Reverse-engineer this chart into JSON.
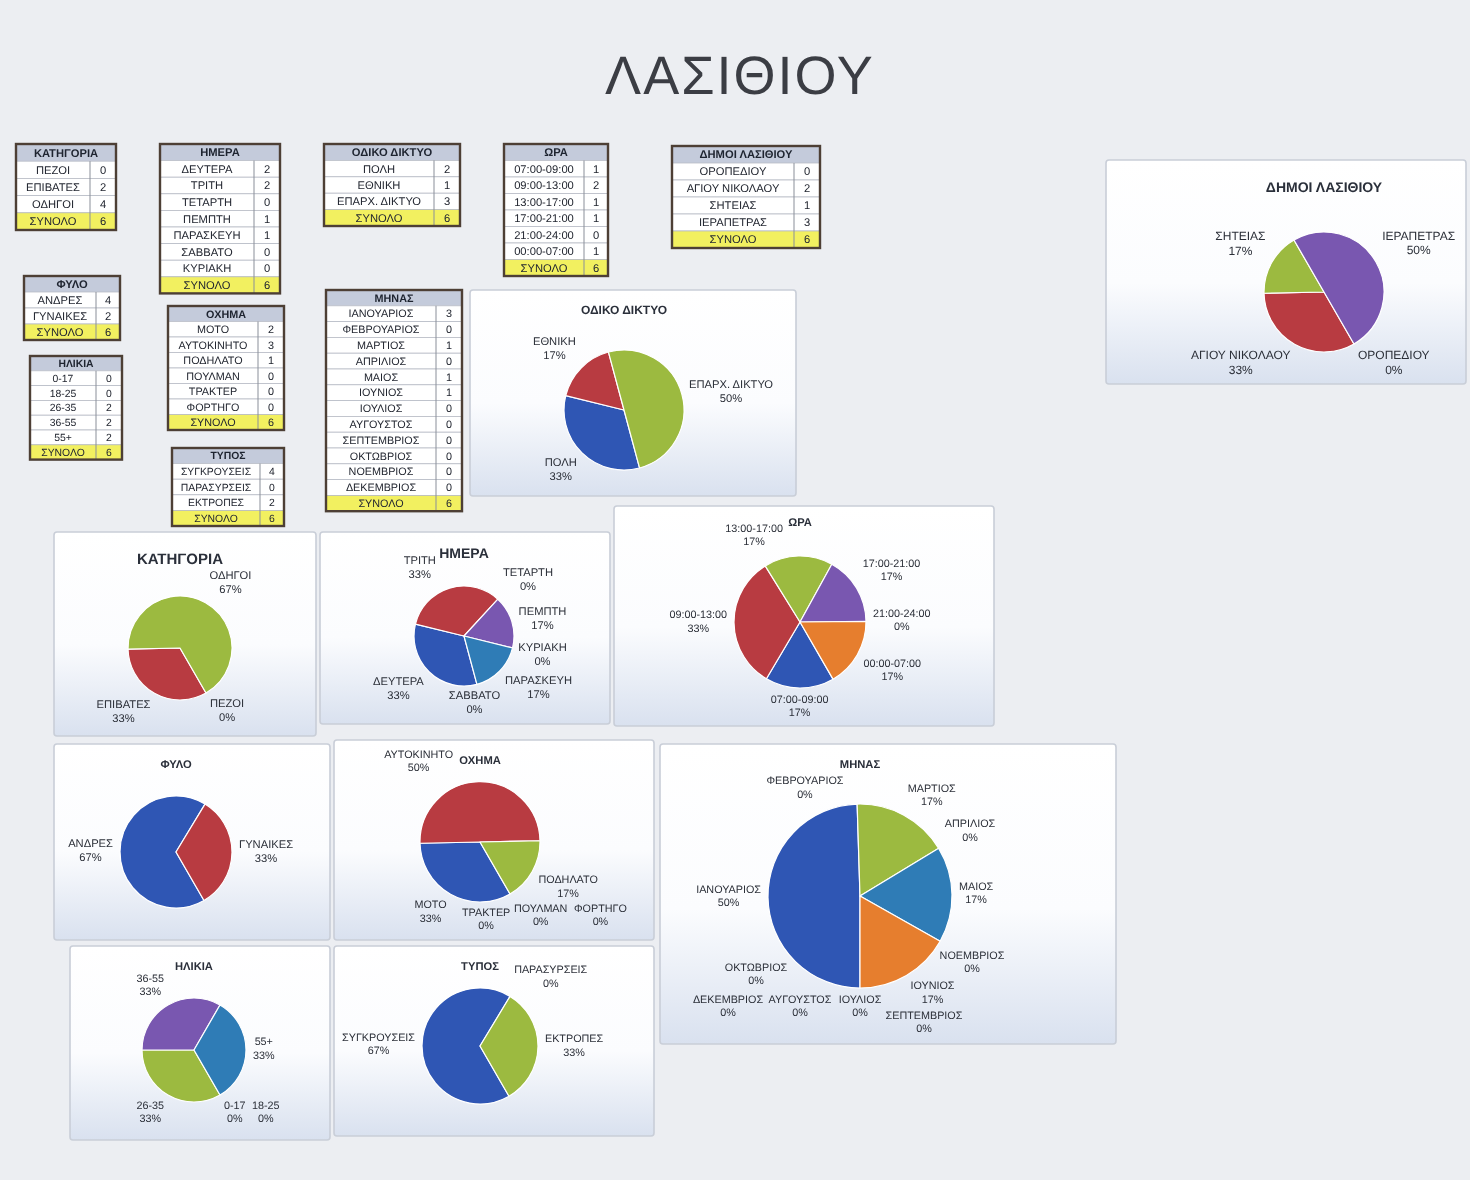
{
  "chart_data": [
    {
      "type": "other",
      "title": "ΛΑΣΙΘΙΟΥ"
    },
    {
      "type": "other",
      "title": "ΚΑΤΗΓΟΡΙΑ",
      "categories": [
        "ΠΕΖΟΙ",
        "ΕΠΙΒΑΤΕΣ",
        "ΟΔΗΓΟΙ",
        "ΣΥΝΟΛΟ"
      ],
      "values": [
        0,
        2,
        4,
        6
      ],
      "data_labels": true,
      "colors": [
        "#ffffff",
        "#ffffff",
        "#ffffff",
        "#f2f060"
      ]
    },
    {
      "type": "other",
      "title": "ΗΜΕΡΑ",
      "categories": [
        "ΔΕΥΤΕΡΑ",
        "ΤΡΙΤΗ",
        "ΤΕΤΑΡΤΗ",
        "ΠΕΜΠΤΗ",
        "ΠΑΡΑΣΚΕΥΗ",
        "ΣΑΒΒΑΤΟ",
        "ΚΥΡΙΑΚΗ",
        "ΣΥΝΟΛΟ"
      ],
      "values": [
        2,
        2,
        0,
        1,
        1,
        0,
        0,
        6
      ],
      "data_labels": true,
      "colors": [
        "#ffffff",
        "#ffffff",
        "#ffffff",
        "#ffffff",
        "#ffffff",
        "#ffffff",
        "#ffffff",
        "#f2f060"
      ]
    },
    {
      "type": "other",
      "title": "ΟΔΙΚΟ ΔΙΚΤΥΟ",
      "categories": [
        "ΠΟΛΗ",
        "ΕΘΝΙΚΗ",
        "ΕΠΑΡΧ. ΔΙΚΤΥΟ",
        "ΣΥΝΟΛΟ"
      ],
      "values": [
        2,
        1,
        3,
        6
      ],
      "data_labels": true,
      "colors": [
        "#ffffff",
        "#ffffff",
        "#ffffff",
        "#f2f060"
      ]
    },
    {
      "type": "other",
      "title": "ΩΡΑ",
      "categories": [
        "07:00-09:00",
        "09:00-13:00",
        "13:00-17:00",
        "17:00-21:00",
        "21:00-24:00",
        "00:00-07:00",
        "ΣΥΝΟΛΟ"
      ],
      "values": [
        1,
        2,
        1,
        1,
        0,
        1,
        6
      ],
      "data_labels": true,
      "colors": [
        "#ffffff",
        "#ffffff",
        "#ffffff",
        "#ffffff",
        "#ffffff",
        "#ffffff",
        "#f2f060"
      ]
    },
    {
      "type": "other",
      "title": "ΔΗΜΟΙ ΛΑΣΙΘΙΟΥ",
      "categories": [
        "ΟΡΟΠΕΔΙΟΥ",
        "ΑΓΙΟΥ ΝΙΚΟΛΑΟΥ",
        "ΣΗΤΕΙΑΣ",
        "ΙΕΡΑΠΕΤΡΑΣ",
        "ΣΥΝΟΛΟ"
      ],
      "values": [
        0,
        2,
        1,
        3,
        6
      ],
      "data_labels": true,
      "colors": [
        "#ffffff",
        "#ffffff",
        "#ffffff",
        "#ffffff",
        "#f2f060"
      ]
    },
    {
      "type": "pie",
      "title": "ΔΗΜΟΙ ΛΑΣΙΘΙΟΥ",
      "categories": [
        "ΟΡΟΠΕΔΙΟΥ",
        "ΑΓΙΟΥ ΝΙΚΟΛΑΟΥ",
        "ΣΗΤΕΙΑΣ",
        "ΙΕΡΑΠΕΤΡΑΣ"
      ],
      "values": [
        0,
        33,
        17,
        50
      ],
      "colors": [
        null,
        "#b83b41",
        "#9cba40",
        "#7957b0"
      ],
      "value_labels": [
        "0%",
        "33%",
        "17%",
        "50%"
      ]
    },
    {
      "type": "other",
      "title": "ΦΥΛΟ",
      "categories": [
        "ΑΝΔΡΕΣ",
        "ΓΥΝΑΙΚΕΣ",
        "ΣΥΝΟΛΟ"
      ],
      "values": [
        4,
        2,
        6
      ],
      "data_labels": true,
      "colors": [
        "#ffffff",
        "#ffffff",
        "#f2f060"
      ]
    },
    {
      "type": "other",
      "title": "ΟΧΗΜΑ",
      "categories": [
        "ΜΟΤΟ",
        "ΑΥΤΟΚΙΝΗΤΟ",
        "ΠΟΔΗΛΑΤΟ",
        "ΠΟΥΛΜΑΝ",
        "ΤΡΑΚΤΕΡ",
        "ΦΟΡΤΗΓΟ",
        "ΣΥΝΟΛΟ"
      ],
      "values": [
        2,
        3,
        1,
        0,
        0,
        0,
        6
      ],
      "data_labels": true,
      "colors": [
        "#ffffff",
        "#ffffff",
        "#ffffff",
        "#ffffff",
        "#ffffff",
        "#ffffff",
        "#f2f060"
      ]
    },
    {
      "type": "other",
      "title": "ΜΗΝΑΣ",
      "categories": [
        "ΙΑΝΟΥΑΡΙΟΣ",
        "ΦΕΒΡΟΥΑΡΙΟΣ",
        "ΜΑΡΤΙΟΣ",
        "ΑΠΡΙΛΙΟΣ",
        "ΜΑΙΟΣ",
        "ΙΟΥΝΙΟΣ",
        "ΙΟΥΛΙΟΣ",
        "ΑΥΓΟΥΣΤΟΣ",
        "ΣΕΠΤΕΜΒΡΙΟΣ",
        "ΟΚΤΩΒΡΙΟΣ",
        "ΝΟΕΜΒΡΙΟΣ",
        "ΔΕΚΕΜΒΡΙΟΣ",
        "ΣΥΝΟΛΟ"
      ],
      "values": [
        3,
        0,
        1,
        0,
        1,
        1,
        0,
        0,
        0,
        0,
        0,
        0,
        6
      ],
      "data_labels": true,
      "colors": [
        "#ffffff",
        "#ffffff",
        "#ffffff",
        "#ffffff",
        "#ffffff",
        "#ffffff",
        "#ffffff",
        "#ffffff",
        "#ffffff",
        "#ffffff",
        "#ffffff",
        "#ffffff",
        "#f2f060"
      ]
    },
    {
      "type": "pie",
      "title": "ΟΔΙΚΟ ΔΙΚΤΥΟ",
      "categories": [
        "ΠΟΛΗ",
        "ΕΘΝΙΚΗ",
        "ΕΠΑΡΧ. ΔΙΚΤΥΟ"
      ],
      "values": [
        33,
        17,
        50
      ],
      "colors": [
        "#2f56b4",
        "#b83b41",
        "#9cba40"
      ],
      "value_labels": [
        "33%",
        "17%",
        "50%"
      ]
    },
    {
      "type": "other",
      "title": "ΗΛΙΚΙΑ",
      "categories": [
        "0-17",
        "18-25",
        "26-35",
        "36-55",
        "55+",
        "ΣΥΝΟΛΟ"
      ],
      "values": [
        0,
        0,
        2,
        2,
        2,
        6
      ],
      "data_labels": true,
      "colors": [
        "#ffffff",
        "#ffffff",
        "#ffffff",
        "#ffffff",
        "#ffffff",
        "#f2f060"
      ]
    },
    {
      "type": "other",
      "title": "ΤΥΠΟΣ",
      "categories": [
        "ΣΥΓΚΡΟΥΣΕΙΣ",
        "ΠΑΡΑΣΥΡΣΕΙΣ",
        "ΕΚΤΡΟΠΕΣ",
        "ΣΥΝΟΛΟ"
      ],
      "values": [
        4,
        0,
        2,
        6
      ],
      "data_labels": true,
      "colors": [
        "#ffffff",
        "#ffffff",
        "#ffffff",
        "#f2f060"
      ]
    },
    {
      "type": "pie",
      "title": "ΚΑΤΗΓΟΡΙΑ",
      "categories": [
        "ΠΕΖΟΙ",
        "ΕΠΙΒΑΤΕΣ",
        "ΟΔΗΓΟΙ"
      ],
      "values": [
        0,
        33,
        67
      ],
      "colors": [
        null,
        "#b83b41",
        "#9cba40"
      ],
      "value_labels": [
        "0%",
        "33%",
        "67%"
      ]
    },
    {
      "type": "pie",
      "title": "ΗΜΕΡΑ",
      "categories": [
        "ΔΕΥΤΕΡΑ",
        "ΤΡΙΤΗ",
        "ΤΕΤΑΡΤΗ",
        "ΠΕΜΠΤΗ",
        "ΠΑΡΑΣΚΕΥΗ",
        "ΣΑΒΒΑΤΟ",
        "ΚΥΡΙΑΚΗ"
      ],
      "values": [
        33,
        33,
        0,
        17,
        17,
        0,
        0
      ],
      "colors": [
        "#2f56b4",
        "#b83b41",
        null,
        "#7957b0",
        "#2f7cb6",
        null,
        null
      ],
      "value_labels": [
        "33%",
        "33%",
        "0%",
        "17%",
        "17%",
        "0%",
        "0%"
      ]
    },
    {
      "type": "pie",
      "title": "ΩΡΑ",
      "categories": [
        "07:00-09:00",
        "09:00-13:00",
        "13:00-17:00",
        "17:00-21:00",
        "21:00-24:00",
        "00:00-07:00"
      ],
      "values": [
        17,
        33,
        17,
        17,
        0,
        17
      ],
      "colors": [
        "#2f56b4",
        "#b83b41",
        "#9cba40",
        "#7957b0",
        null,
        "#e67e2e"
      ],
      "value_labels": [
        "17%",
        "33%",
        "17%",
        "17%",
        "0%",
        "17%"
      ]
    },
    {
      "type": "pie",
      "title": "ΦΥΛΟ",
      "categories": [
        "ΑΝΔΡΕΣ",
        "ΓΥΝΑΙΚΕΣ"
      ],
      "values": [
        67,
        33
      ],
      "colors": [
        "#2f56b4",
        "#b83b41"
      ],
      "value_labels": [
        "67%",
        "33%"
      ]
    },
    {
      "type": "pie",
      "title": "ΟΧΗΜΑ",
      "categories": [
        "ΜΟΤΟ",
        "ΑΥΤΟΚΙΝΗΤΟ",
        "ΠΟΔΗΛΑΤΟ",
        "ΠΟΥΛΜΑΝ",
        "ΤΡΑΚΤΕΡ",
        "ΦΟΡΤΗΓΟ"
      ],
      "values": [
        33,
        50,
        17,
        0,
        0,
        0
      ],
      "colors": [
        "#2f56b4",
        "#b83b41",
        "#9cba40",
        null,
        null,
        null
      ],
      "value_labels": [
        "33%",
        "50%",
        "17%",
        "0%",
        "0%",
        "0%"
      ]
    },
    {
      "type": "pie",
      "title": "ΜΗΝΑΣ",
      "categories": [
        "ΙΑΝΟΥΑΡΙΟΣ",
        "ΦΕΒΡΟΥΑΡΙΟΣ",
        "ΜΑΡΤΙΟΣ",
        "ΑΠΡΙΛΙΟΣ",
        "ΜΑΙΟΣ",
        "ΙΟΥΝΙΟΣ",
        "ΙΟΥΛΙΟΣ",
        "ΑΥΓΟΥΣΤΟΣ",
        "ΣΕΠΤΕΜΒΡΙΟΣ",
        "ΟΚΤΩΒΡΙΟΣ",
        "ΝΟΕΜΒΡΙΟΣ",
        "ΔΕΚΕΜΒΡΙΟΣ"
      ],
      "values": [
        50,
        0,
        17,
        0,
        17,
        17,
        0,
        0,
        0,
        0,
        0,
        0
      ],
      "colors": [
        "#2f56b4",
        null,
        "#9cba40",
        null,
        "#2f7cb6",
        "#e67e2e",
        null,
        null,
        null,
        null,
        null,
        null
      ],
      "value_labels": [
        "50%",
        "0%",
        "17%",
        "0%",
        "17%",
        "17%",
        "0%",
        "0%",
        "0%",
        "0%",
        "0%",
        "0%"
      ]
    },
    {
      "type": "pie",
      "title": "ΗΛΙΚΙΑ",
      "categories": [
        "0-17",
        "18-25",
        "26-35",
        "36-55",
        "55+"
      ],
      "values": [
        0,
        0,
        33,
        33,
        33
      ],
      "colors": [
        null,
        null,
        "#9cba40",
        "#7957b0",
        "#2f7cb6"
      ],
      "value_labels": [
        "0%",
        "0%",
        "33%",
        "33%",
        "33%"
      ]
    },
    {
      "type": "pie",
      "title": "ΤΥΠΟΣ",
      "categories": [
        "ΣΥΓΚΡΟΥΣΕΙΣ",
        "ΠΑΡΑΣΥΡΣΕΙΣ",
        "ΕΚΤΡΟΠΕΣ"
      ],
      "values": [
        67,
        0,
        33
      ],
      "colors": [
        "#2f56b4",
        null,
        "#9cba40"
      ],
      "value_labels": [
        "67%",
        "0%",
        "33%"
      ]
    }
  ]
}
